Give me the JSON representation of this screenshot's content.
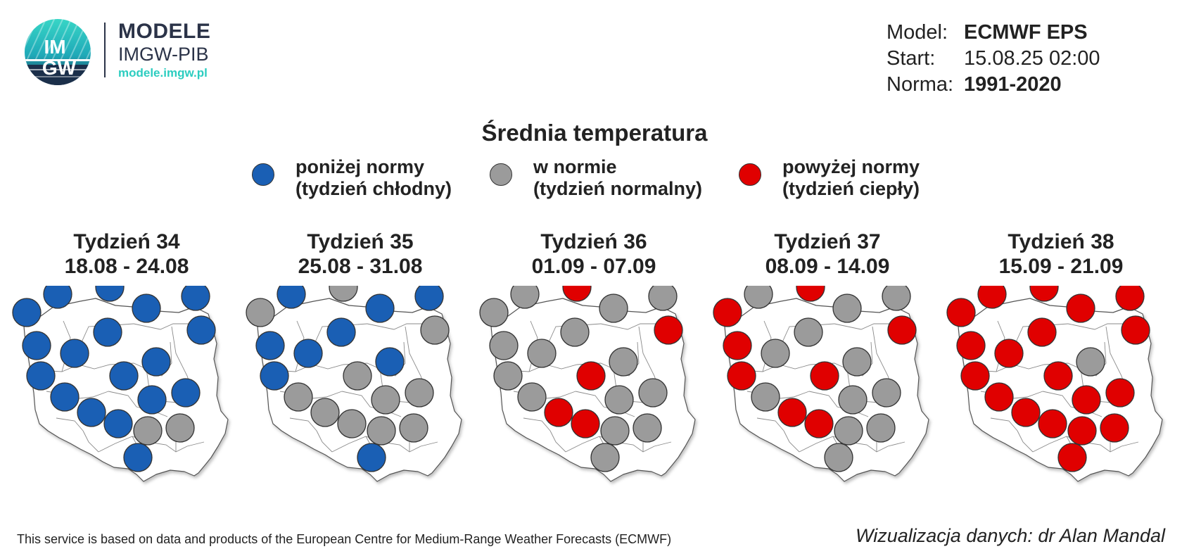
{
  "logo": {
    "circle_text": "IMGW",
    "title": "MODELE",
    "subtitle": "IMGW-PIB",
    "url": "modele.imgw.pl"
  },
  "model_info": {
    "model_label": "Model:",
    "model_value": "ECMWF EPS",
    "start_label": "Start:",
    "start_value": "15.08.25 02:00",
    "norm_label": "Norma:",
    "norm_value": "1991-2020"
  },
  "title": "Średnia temperatura",
  "legend": [
    {
      "key": "below",
      "line1": "poniżej normy",
      "line2": "(tydzień chłodny)",
      "color": "#1a5fb4"
    },
    {
      "key": "normal",
      "line1": "w normie",
      "line2": "(tydzień normalny)",
      "color": "#9b9b9b"
    },
    {
      "key": "above",
      "line1": "powyżej normy",
      "line2": "(tydzień ciepły)",
      "color": "#e00000"
    }
  ],
  "weeks": [
    {
      "title": "Tydzień 34",
      "dates": "18.08 - 24.08",
      "categories": [
        "below",
        "below",
        "below",
        "below",
        "below",
        "below",
        "below",
        "below",
        "below",
        "below",
        "normal",
        "below",
        "below",
        "below",
        "below",
        "below",
        "below",
        "below",
        "normal",
        "below"
      ]
    },
    {
      "title": "Tydzień 35",
      "dates": "25.08 - 31.08",
      "categories": [
        "normal",
        "below",
        "normal",
        "below",
        "below",
        "normal",
        "below",
        "below",
        "below",
        "below",
        "normal",
        "below",
        "normal",
        "normal",
        "normal",
        "normal",
        "normal",
        "normal",
        "normal",
        "below"
      ]
    },
    {
      "title": "Tydzień 36",
      "dates": "01.09 - 07.09",
      "categories": [
        "normal",
        "normal",
        "above",
        "normal",
        "normal",
        "above",
        "normal",
        "normal",
        "normal",
        "normal",
        "normal",
        "normal",
        "above",
        "normal",
        "normal",
        "normal",
        "above",
        "above",
        "normal",
        "normal"
      ]
    },
    {
      "title": "Tydzień 37",
      "dates": "08.09 - 14.09",
      "categories": [
        "above",
        "normal",
        "above",
        "normal",
        "normal",
        "above",
        "above",
        "normal",
        "normal",
        "normal",
        "normal",
        "above",
        "above",
        "normal",
        "normal",
        "normal",
        "above",
        "above",
        "normal",
        "normal"
      ]
    },
    {
      "title": "Tydzień 38",
      "dates": "15.09 - 21.09",
      "categories": [
        "above",
        "above",
        "above",
        "above",
        "above",
        "above",
        "above",
        "above",
        "above",
        "normal",
        "above",
        "above",
        "above",
        "above",
        "above",
        "above",
        "above",
        "above",
        "above",
        "above"
      ]
    }
  ],
  "footer": {
    "left": "This service is based on data and products of the European Centre for Medium-Range Weather Forecasts (ECMWF)",
    "right": "Wizualizacja danych: dr Alan Mandal"
  }
}
